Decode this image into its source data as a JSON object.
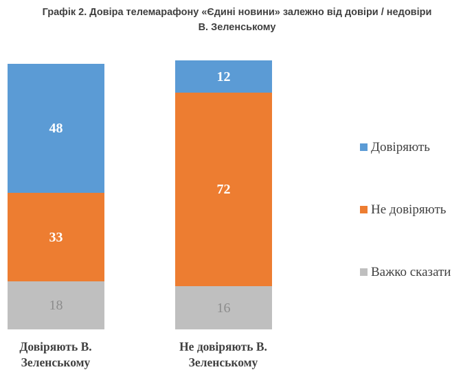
{
  "header": {
    "title_line1": "Графік 2. Довіра телемарафону «Єдині новини» залежно від довіри / недовіри",
    "title_line2": "В. Зеленському"
  },
  "chart_data": {
    "type": "bar",
    "stacked": true,
    "title": "Графік 2. Довіра телемарафону «Єдині новини» залежно від довіри / недовіри В. Зеленському",
    "categories": [
      "Довіряють В. Зеленському",
      "Не довіряють В. Зеленському"
    ],
    "series": [
      {
        "name": "Довіряють",
        "color": "#5B9BD5",
        "values": [
          48,
          12
        ],
        "label_color": "#ffffff",
        "label_bold": true
      },
      {
        "name": "Не довіряють",
        "color": "#ED7D31",
        "values": [
          33,
          72
        ],
        "label_color": "#ffffff",
        "label_bold": true
      },
      {
        "name": "Важко сказати",
        "color": "#BFBFBF",
        "values": [
          18,
          16
        ],
        "label_color": "#8c8c8c",
        "label_bold": false
      }
    ],
    "ylim": [
      0,
      100
    ],
    "grid": false,
    "legend_position": "right",
    "xlabel": "",
    "ylabel": ""
  }
}
